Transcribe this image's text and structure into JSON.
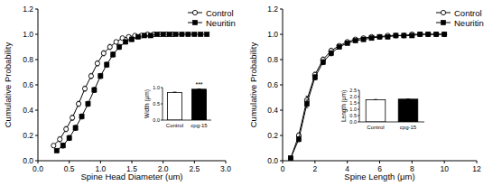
{
  "chart_data": [
    {
      "type": "line",
      "x_label": "Spine Head Diameter (um)",
      "y_label": "Cumulative Probability",
      "xlim": [
        0,
        3
      ],
      "xticks": [
        {
          "value": 0,
          "label": "0.0"
        },
        {
          "value": 0.5,
          "label": "0.5"
        },
        {
          "value": 1,
          "label": "1.0"
        },
        {
          "value": 1.5,
          "label": "1.5"
        },
        {
          "value": 2,
          "label": "2.0"
        },
        {
          "value": 2.5,
          "label": "2.5"
        },
        {
          "value": 3,
          "label": "3.0"
        }
      ],
      "ylim": [
        0,
        1.2
      ],
      "yticks": [
        {
          "value": 0,
          "label": "0.0"
        },
        {
          "value": 0.2,
          "label": "0.2"
        },
        {
          "value": 0.4,
          "label": "0.4"
        },
        {
          "value": 0.6,
          "label": "0.6"
        },
        {
          "value": 0.8,
          "label": "0.8"
        },
        {
          "value": 1,
          "label": "1.0"
        },
        {
          "value": 1.2,
          "label": "1.2"
        }
      ],
      "legend": "upper right",
      "series": [
        {
          "name": "Control",
          "color": "#000000",
          "marker": "circle-open",
          "x": [
            0.25,
            0.35,
            0.45,
            0.55,
            0.65,
            0.75,
            0.85,
            0.95,
            1.05,
            1.15,
            1.25,
            1.35,
            1.45,
            1.55,
            1.65,
            1.75,
            1.85,
            1.95,
            2.05,
            2.15
          ],
          "values": [
            0.12,
            0.17,
            0.25,
            0.34,
            0.45,
            0.57,
            0.67,
            0.77,
            0.85,
            0.9,
            0.94,
            0.97,
            0.98,
            0.99,
            0.99,
            1.0,
            1.0,
            1.0,
            1.0,
            1.0
          ],
          "errors": [
            0.01,
            0.02,
            0.02,
            0.02,
            0.02,
            0.02,
            0.02,
            0.02,
            0.02,
            0.02,
            0.01,
            0.01,
            0.01,
            0.01,
            0.01,
            0.01,
            0.01,
            0.01,
            0.01,
            0.01
          ]
        },
        {
          "name": "Neuritin",
          "color": "#000000",
          "marker": "square",
          "x": [
            0.3,
            0.4,
            0.5,
            0.6,
            0.7,
            0.8,
            0.9,
            1.0,
            1.1,
            1.2,
            1.3,
            1.4,
            1.5,
            1.6,
            1.7,
            1.8,
            1.9,
            2.0,
            2.1,
            2.2,
            2.3,
            2.4,
            2.5,
            2.6,
            2.7
          ],
          "values": [
            0.08,
            0.12,
            0.18,
            0.26,
            0.35,
            0.45,
            0.56,
            0.67,
            0.76,
            0.84,
            0.9,
            0.94,
            0.96,
            0.98,
            0.99,
            0.99,
            1.0,
            1.0,
            1.0,
            1.0,
            1.0,
            1.0,
            1.0,
            1.0,
            1.0
          ],
          "errors": [
            0.01,
            0.02,
            0.02,
            0.02,
            0.02,
            0.02,
            0.02,
            0.02,
            0.02,
            0.02,
            0.02,
            0.01,
            0.01,
            0.01,
            0.01,
            0.01,
            0.01,
            0.01,
            0.01,
            0.01,
            0.01,
            0.01,
            0.01,
            0.01,
            0.01
          ]
        }
      ]
    },
    {
      "type": "bar",
      "y_label": "Width (μm)",
      "categories": [
        "Control",
        "cpg-15"
      ],
      "values": [
        0.85,
        0.95
      ],
      "errors": [
        0.01,
        0.01
      ],
      "colors": [
        "#ffffff",
        "#000000"
      ],
      "ylim": [
        0,
        1.0
      ],
      "yticks": [
        {
          "value": 0,
          "label": "0.0"
        },
        {
          "value": 0.5,
          "label": "0.5"
        },
        {
          "value": 1,
          "label": "1.0"
        }
      ],
      "annotations": [
        {
          "text": "***",
          "category": "cpg-15"
        }
      ]
    },
    {
      "type": "line",
      "x_label": "Spine Length (μm)",
      "y_label": "Cumulative Probability",
      "xlim": [
        0,
        12
      ],
      "xticks": [
        0,
        2,
        4,
        6,
        8,
        10,
        12
      ],
      "ylim": [
        0,
        1.2
      ],
      "yticks": [
        {
          "value": 0,
          "label": "0.0"
        },
        {
          "value": 0.2,
          "label": "0.2"
        },
        {
          "value": 0.4,
          "label": "0.4"
        },
        {
          "value": 0.6,
          "label": "0.6"
        },
        {
          "value": 0.8,
          "label": "0.8"
        },
        {
          "value": 1,
          "label": "1.0"
        },
        {
          "value": 1.2,
          "label": "1.2"
        }
      ],
      "legend": "upper right",
      "series": [
        {
          "name": "Control",
          "color": "#000000",
          "marker": "circle-open",
          "x": [
            0.5,
            1,
            1.5,
            2,
            2.5,
            3,
            3.5,
            4,
            4.5,
            5,
            5.5,
            6,
            6.5,
            7,
            7.5,
            8,
            8.5,
            9,
            9.5,
            10
          ],
          "values": [
            0.02,
            0.2,
            0.48,
            0.68,
            0.8,
            0.87,
            0.91,
            0.94,
            0.96,
            0.97,
            0.98,
            0.98,
            0.99,
            0.99,
            0.99,
            1.0,
            1.0,
            1.0,
            1.0,
            1.0
          ],
          "errors": [
            0.01,
            0.02,
            0.03,
            0.02,
            0.02,
            0.02,
            0.01,
            0.01,
            0.01,
            0.01,
            0.01,
            0.01,
            0.01,
            0.01,
            0.01,
            0.01,
            0.01,
            0.01,
            0.01,
            0.01
          ]
        },
        {
          "name": "Neuritin",
          "color": "#000000",
          "marker": "square",
          "x": [
            0.5,
            1,
            1.5,
            2,
            2.5,
            3,
            3.5,
            4,
            4.5,
            5,
            5.5,
            6,
            6.5,
            7,
            7.5,
            8,
            8.5,
            9,
            9.5,
            10
          ],
          "values": [
            0.02,
            0.17,
            0.45,
            0.66,
            0.78,
            0.85,
            0.9,
            0.93,
            0.95,
            0.96,
            0.97,
            0.98,
            0.98,
            0.99,
            0.99,
            0.99,
            1.0,
            1.0,
            1.0,
            1.0
          ],
          "errors": [
            0.01,
            0.02,
            0.03,
            0.02,
            0.02,
            0.02,
            0.01,
            0.01,
            0.01,
            0.01,
            0.01,
            0.01,
            0.01,
            0.01,
            0.01,
            0.01,
            0.01,
            0.01,
            0.01,
            0.01
          ]
        }
      ]
    },
    {
      "type": "bar",
      "y_label": "Length (μm)",
      "categories": [
        "Control",
        "cpg-15"
      ],
      "values": [
        1.75,
        1.8
      ],
      "errors": [
        0.02,
        0.02
      ],
      "colors": [
        "#ffffff",
        "#000000"
      ],
      "ylim": [
        0,
        2.5
      ],
      "yticks": [
        {
          "value": 0,
          "label": "0.0"
        },
        {
          "value": 0.5,
          "label": "0.5"
        },
        {
          "value": 1,
          "label": "1.0"
        },
        {
          "value": 1.5,
          "label": "1.5"
        },
        {
          "value": 2,
          "label": "2.0"
        },
        {
          "value": 2.5,
          "label": "2.5"
        }
      ]
    }
  ]
}
